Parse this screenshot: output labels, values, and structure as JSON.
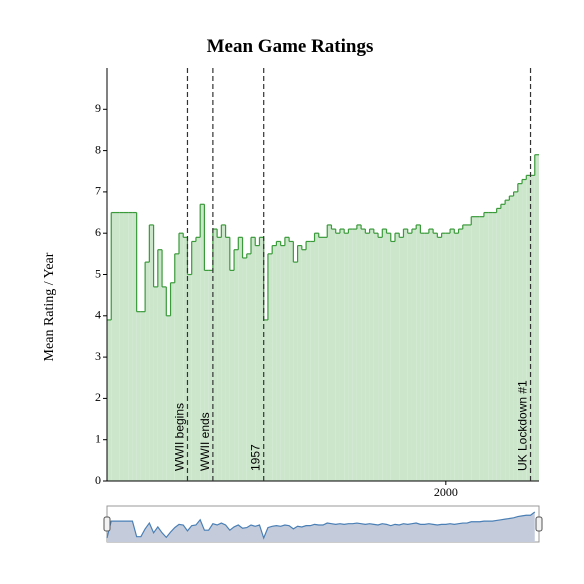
{
  "chart_data": {
    "type": "step-area",
    "title": "Mean Game Ratings",
    "y_label": "Mean Rating / Year",
    "x": [
      1920,
      1921,
      1922,
      1923,
      1924,
      1925,
      1926,
      1927,
      1928,
      1929,
      1930,
      1931,
      1932,
      1933,
      1934,
      1935,
      1936,
      1937,
      1938,
      1939,
      1940,
      1941,
      1942,
      1943,
      1944,
      1945,
      1946,
      1947,
      1948,
      1949,
      1950,
      1951,
      1952,
      1953,
      1954,
      1955,
      1956,
      1957,
      1958,
      1959,
      1960,
      1961,
      1962,
      1963,
      1964,
      1965,
      1966,
      1967,
      1968,
      1969,
      1970,
      1971,
      1972,
      1973,
      1974,
      1975,
      1976,
      1977,
      1978,
      1979,
      1980,
      1981,
      1982,
      1983,
      1984,
      1985,
      1986,
      1987,
      1988,
      1989,
      1990,
      1991,
      1992,
      1993,
      1994,
      1995,
      1996,
      1997,
      1998,
      1999,
      2000,
      2001,
      2002,
      2003,
      2004,
      2005,
      2006,
      2007,
      2008,
      2009,
      2010,
      2011,
      2012,
      2013,
      2014,
      2015,
      2016,
      2017,
      2018,
      2019,
      2020,
      2021
    ],
    "series": [
      {
        "name": "Mean Rating",
        "color": "#3a9a3a",
        "fill": "#cce6cc",
        "values": [
          3.9,
          6.5,
          6.5,
          6.5,
          6.5,
          6.5,
          6.5,
          4.1,
          4.1,
          5.3,
          6.2,
          4.7,
          5.6,
          4.7,
          4.0,
          4.8,
          5.5,
          6.0,
          5.9,
          5.0,
          5.8,
          5.9,
          6.7,
          5.1,
          5.1,
          6.1,
          5.9,
          6.2,
          5.9,
          5.1,
          5.6,
          5.9,
          5.4,
          5.5,
          5.9,
          5.7,
          5.9,
          3.9,
          5.5,
          5.7,
          5.8,
          5.7,
          5.9,
          5.8,
          5.3,
          5.7,
          5.6,
          5.8,
          5.8,
          6.0,
          5.9,
          5.9,
          6.2,
          6.1,
          6.0,
          6.1,
          6.0,
          6.1,
          6.1,
          6.2,
          6.1,
          6.0,
          6.1,
          6.0,
          5.9,
          6.1,
          6.0,
          5.8,
          6.0,
          5.9,
          6.1,
          6.0,
          6.1,
          6.2,
          6.0,
          6.0,
          6.1,
          6.0,
          5.9,
          6.0,
          6.0,
          6.1,
          6.0,
          6.1,
          6.2,
          6.2,
          6.4,
          6.4,
          6.4,
          6.5,
          6.5,
          6.5,
          6.6,
          6.7,
          6.8,
          6.9,
          7.0,
          7.2,
          7.3,
          7.4,
          7.4,
          7.9
        ]
      }
    ],
    "xlim": [
      1920,
      2022
    ],
    "xticks": [
      2000
    ],
    "ylim": [
      0,
      10
    ],
    "yticks": [
      0,
      1,
      2,
      3,
      4,
      5,
      6,
      7,
      8,
      9
    ],
    "annotations": [
      {
        "x": 1939,
        "label": "WWII begins"
      },
      {
        "x": 1945,
        "label": "WWII ends"
      },
      {
        "x": 1957,
        "label": "1957"
      },
      {
        "x": 2020,
        "label": "UK Lockdown #1"
      }
    ],
    "navigator": true
  }
}
